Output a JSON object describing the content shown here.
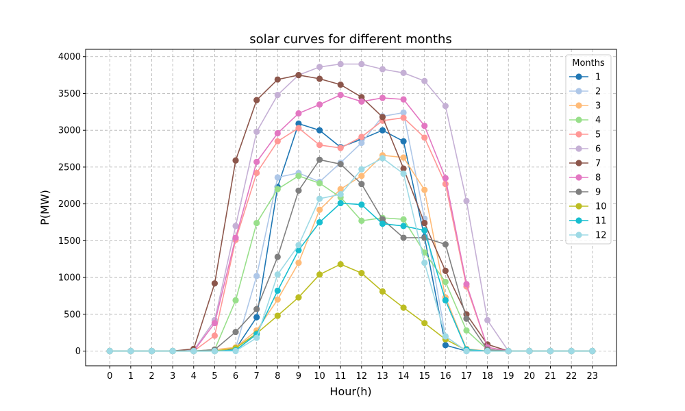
{
  "chart_data": {
    "type": "line",
    "title": "solar curves for different months",
    "xlabel": "Hour(h)",
    "ylabel": "P(MW)",
    "xlim": [
      -1.15,
      24.15
    ],
    "ylim": [
      -200,
      4100
    ],
    "grid": true,
    "legend": {
      "title": "Months",
      "placement": "top-right"
    },
    "x": [
      0,
      1,
      2,
      3,
      4,
      5,
      6,
      7,
      8,
      9,
      10,
      11,
      12,
      13,
      14,
      15,
      16,
      17,
      18,
      19,
      20,
      21,
      22,
      23
    ],
    "x_ticks": [
      "0",
      "1",
      "2",
      "3",
      "4",
      "5",
      "6",
      "7",
      "8",
      "9",
      "10",
      "11",
      "12",
      "13",
      "14",
      "15",
      "16",
      "17",
      "18",
      "19",
      "20",
      "21",
      "22",
      "23"
    ],
    "y_ticks": [
      0,
      500,
      1000,
      1500,
      2000,
      2500,
      3000,
      3500,
      4000
    ],
    "series": [
      {
        "name": "1",
        "color": "#1f77b4",
        "values": [
          0,
          0,
          0,
          0,
          0,
          0,
          30,
          460,
          2230,
          3090,
          3000,
          2770,
          2880,
          3000,
          2850,
          1550,
          80,
          0,
          0,
          0,
          0,
          0,
          0,
          0
        ]
      },
      {
        "name": "2",
        "color": "#aec7e8",
        "values": [
          0,
          0,
          0,
          0,
          0,
          0,
          40,
          1020,
          2360,
          2420,
          2300,
          2560,
          2830,
          3190,
          3240,
          1800,
          200,
          0,
          0,
          0,
          0,
          0,
          0,
          0
        ]
      },
      {
        "name": "3",
        "color": "#ffbb78",
        "values": [
          0,
          0,
          0,
          0,
          0,
          20,
          50,
          280,
          700,
          1200,
          1920,
          2200,
          2380,
          2660,
          2630,
          2190,
          730,
          30,
          0,
          0,
          0,
          0,
          0,
          0
        ]
      },
      {
        "name": "4",
        "color": "#98df8a",
        "values": [
          0,
          0,
          0,
          0,
          0,
          20,
          690,
          1740,
          2200,
          2380,
          2280,
          2090,
          1770,
          1810,
          1790,
          1340,
          940,
          280,
          20,
          0,
          0,
          0,
          0,
          0
        ]
      },
      {
        "name": "5",
        "color": "#ff9896",
        "values": [
          0,
          0,
          0,
          0,
          0,
          210,
          1510,
          2420,
          2850,
          3030,
          2800,
          2760,
          2910,
          3130,
          3170,
          2900,
          2270,
          880,
          50,
          0,
          0,
          0,
          0,
          0
        ]
      },
      {
        "name": "6",
        "color": "#c5b0d5",
        "values": [
          0,
          0,
          0,
          0,
          10,
          420,
          1700,
          2980,
          3480,
          3750,
          3860,
          3900,
          3900,
          3830,
          3780,
          3670,
          3330,
          2040,
          420,
          0,
          0,
          0,
          0,
          0
        ]
      },
      {
        "name": "7",
        "color": "#8c564b",
        "values": [
          0,
          0,
          0,
          0,
          30,
          920,
          2590,
          3410,
          3690,
          3750,
          3700,
          3620,
          3450,
          3180,
          2480,
          1740,
          1090,
          500,
          90,
          0,
          0,
          0,
          0,
          0
        ]
      },
      {
        "name": "8",
        "color": "#e377c2",
        "values": [
          0,
          0,
          0,
          0,
          0,
          380,
          1540,
          2570,
          2960,
          3230,
          3350,
          3480,
          3390,
          3440,
          3420,
          3060,
          2350,
          910,
          50,
          0,
          0,
          0,
          0,
          0
        ]
      },
      {
        "name": "9",
        "color": "#7f7f7f",
        "values": [
          0,
          0,
          0,
          0,
          0,
          20,
          260,
          570,
          1280,
          2180,
          2600,
          2540,
          2270,
          1790,
          1540,
          1540,
          1450,
          440,
          20,
          0,
          0,
          0,
          0,
          0
        ]
      },
      {
        "name": "10",
        "color": "#bcbd22",
        "values": [
          0,
          0,
          0,
          0,
          0,
          0,
          40,
          240,
          480,
          730,
          1040,
          1180,
          1060,
          810,
          590,
          380,
          160,
          10,
          0,
          0,
          0,
          0,
          0,
          0
        ]
      },
      {
        "name": "11",
        "color": "#17becf",
        "values": [
          0,
          0,
          0,
          0,
          0,
          0,
          10,
          230,
          820,
          1370,
          1750,
          2010,
          1990,
          1730,
          1700,
          1640,
          690,
          20,
          0,
          0,
          0,
          0,
          0,
          0
        ]
      },
      {
        "name": "12",
        "color": "#9edae5",
        "values": [
          0,
          0,
          0,
          0,
          0,
          0,
          0,
          180,
          1040,
          1440,
          2070,
          2130,
          2470,
          2620,
          2410,
          1200,
          200,
          0,
          0,
          0,
          0,
          0,
          0,
          0
        ]
      }
    ]
  }
}
